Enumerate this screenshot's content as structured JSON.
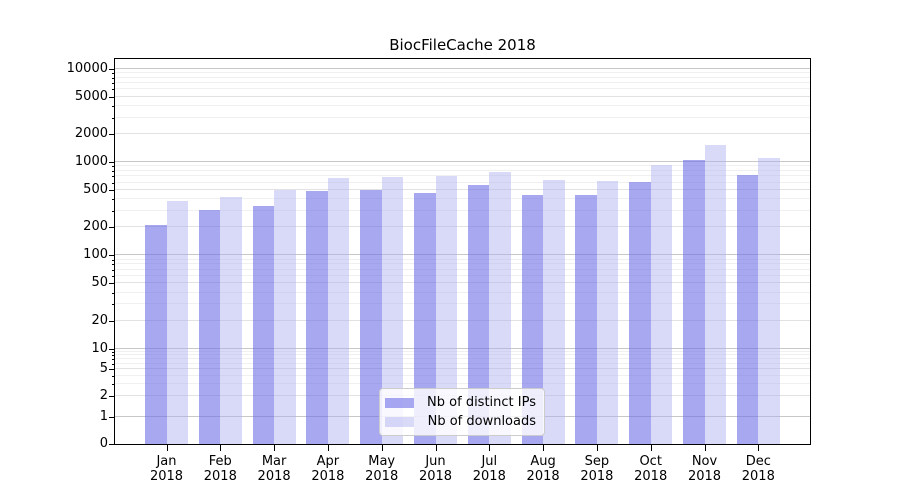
{
  "chart_data": {
    "type": "bar",
    "title": "BiocFileCache 2018",
    "categories": [
      "Jan",
      "Feb",
      "Mar",
      "Apr",
      "May",
      "Jun",
      "Jul",
      "Aug",
      "Sep",
      "Oct",
      "Nov",
      "Dec"
    ],
    "year_label": "2018",
    "series": [
      {
        "name": "Nb of distinct IPs",
        "color": "rgba(110,110,232,0.6)",
        "values": [
          210,
          310,
          340,
          495,
          505,
          465,
          570,
          445,
          440,
          610,
          1040,
          730
        ]
      },
      {
        "name": "Nb of downloads",
        "color": "rgba(170,170,240,0.45)",
        "values": [
          385,
          420,
          500,
          670,
          685,
          700,
          790,
          635,
          630,
          940,
          1540,
          1110
        ]
      }
    ],
    "yaxis": {
      "scale": "log",
      "ticks": [
        0,
        1,
        2,
        5,
        10,
        20,
        50,
        100,
        200,
        500,
        1000,
        2000,
        5000,
        10000
      ],
      "ylim": [
        0,
        12000
      ]
    },
    "grid": true,
    "legend_position": "lower center",
    "grid_major_color": "#c8c8c8",
    "grid_minor_color": "#f0f0f0",
    "frame_color": "#000000"
  }
}
